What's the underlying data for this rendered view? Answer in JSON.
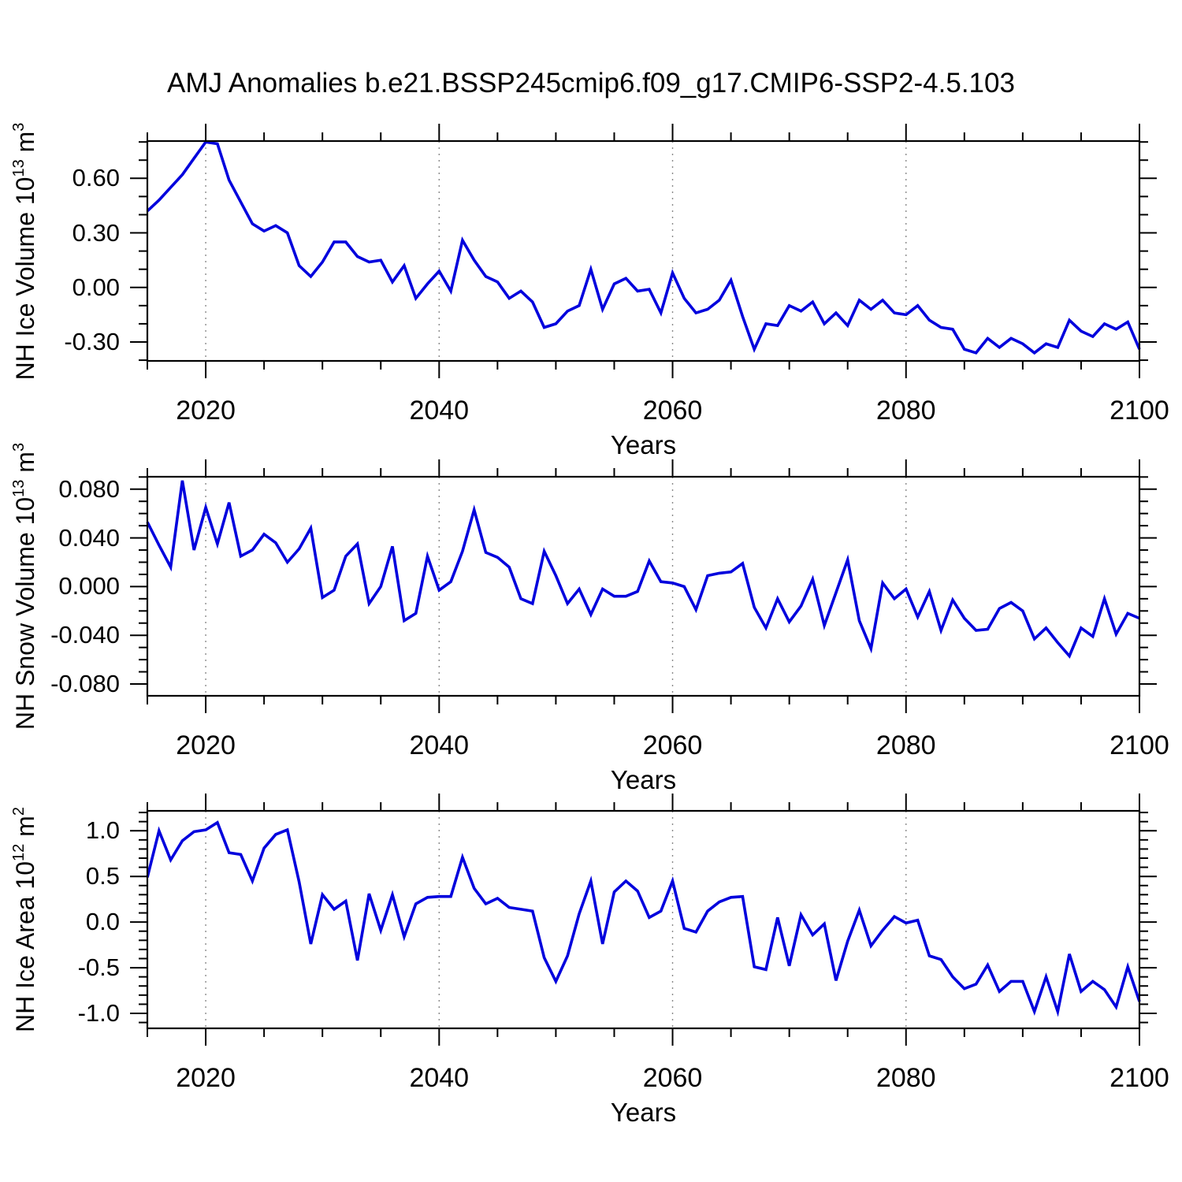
{
  "title": "AMJ Anomalies b.e21.BSSP245cmip6.f09_g17.CMIP6-SSP2-4.5.103",
  "chart_data": {
    "type": "line",
    "title": "AMJ Anomalies b.e21.BSSP245cmip6.f09_g17.CMIP6-SSP2-4.5.103",
    "xlabel": "Years",
    "xlim": [
      2015,
      2100
    ],
    "x_ticks_major": [
      2020,
      2040,
      2060,
      2080,
      2100
    ],
    "x_tick_labels": [
      "2020",
      "2040",
      "2060",
      "2080",
      "2100"
    ],
    "x_minor_step": 5,
    "grid_x_dashed": [
      2020,
      2040,
      2060,
      2080
    ],
    "grid": "vertical-dashed-only",
    "legend": "none",
    "line_color": "#0000dd",
    "frame_color": "#000000",
    "gridline_color": "#8a8a8a",
    "years": [
      2015,
      2016,
      2017,
      2018,
      2019,
      2020,
      2021,
      2022,
      2023,
      2024,
      2025,
      2026,
      2027,
      2028,
      2029,
      2030,
      2031,
      2032,
      2033,
      2034,
      2035,
      2036,
      2037,
      2038,
      2039,
      2040,
      2041,
      2042,
      2043,
      2044,
      2045,
      2046,
      2047,
      2048,
      2049,
      2050,
      2051,
      2052,
      2053,
      2054,
      2055,
      2056,
      2057,
      2058,
      2059,
      2060,
      2061,
      2062,
      2063,
      2064,
      2065,
      2066,
      2067,
      2068,
      2069,
      2070,
      2071,
      2072,
      2073,
      2074,
      2075,
      2076,
      2077,
      2078,
      2079,
      2080,
      2081,
      2082,
      2083,
      2084,
      2085,
      2086,
      2087,
      2088,
      2089,
      2090,
      2091,
      2092,
      2093,
      2094,
      2095,
      2096,
      2097,
      2098,
      2099,
      2100
    ],
    "panels": [
      {
        "name": "nh-ice-volume",
        "ylabel": "NH Ice Volume 10^13 m^3",
        "ylabel_rich": [
          {
            "t": "NH Ice Volume 10"
          },
          {
            "t": "13",
            "sup": true
          },
          {
            "t": " m"
          },
          {
            "t": "3",
            "sup": true
          }
        ],
        "ylim": [
          -0.404,
          0.805
        ],
        "y_ticks_major": [
          0.6,
          0.3,
          0.0,
          -0.3
        ],
        "y_tick_labels": [
          "0.60",
          "0.30",
          "0.00",
          "-0.30"
        ],
        "y_minor_step": 0.1,
        "values": [
          0.42,
          0.48,
          0.55,
          0.62,
          0.71,
          0.8,
          0.79,
          0.59,
          0.47,
          0.35,
          0.31,
          0.34,
          0.3,
          0.12,
          0.06,
          0.14,
          0.25,
          0.25,
          0.17,
          0.14,
          0.15,
          0.03,
          0.12,
          -0.06,
          0.02,
          0.09,
          -0.02,
          0.26,
          0.15,
          0.06,
          0.03,
          -0.06,
          -0.02,
          -0.08,
          -0.22,
          -0.2,
          -0.13,
          -0.1,
          0.1,
          -0.12,
          0.02,
          0.05,
          -0.02,
          -0.01,
          -0.14,
          0.08,
          -0.06,
          -0.14,
          -0.12,
          -0.07,
          0.04,
          -0.16,
          -0.34,
          -0.2,
          -0.21,
          -0.1,
          -0.13,
          -0.08,
          -0.2,
          -0.14,
          -0.21,
          -0.07,
          -0.12,
          -0.07,
          -0.14,
          -0.15,
          -0.1,
          -0.18,
          -0.22,
          -0.23,
          -0.34,
          -0.36,
          -0.28,
          -0.33,
          -0.28,
          -0.31,
          -0.36,
          -0.31,
          -0.33,
          -0.18,
          -0.24,
          -0.27,
          -0.2,
          -0.23,
          -0.19,
          -0.34
        ]
      },
      {
        "name": "nh-snow-volume",
        "ylabel": "NH Snow Volume 10^13 m^3",
        "ylabel_rich": [
          {
            "t": "NH Snow Volume 10"
          },
          {
            "t": "13",
            "sup": true
          },
          {
            "t": " m"
          },
          {
            "t": "3",
            "sup": true
          }
        ],
        "ylim": [
          -0.0897,
          0.0902
        ],
        "y_ticks_major": [
          0.08,
          0.04,
          0.0,
          -0.04,
          -0.08
        ],
        "y_tick_labels": [
          "0.080",
          "0.040",
          "0.000",
          "-0.040",
          "-0.080"
        ],
        "y_minor_step": 0.01,
        "values": [
          0.053,
          0.034,
          0.016,
          0.087,
          0.03,
          0.065,
          0.035,
          0.069,
          0.025,
          0.03,
          0.043,
          0.036,
          0.02,
          0.031,
          0.048,
          -0.009,
          -0.003,
          0.025,
          0.035,
          -0.014,
          0.0,
          0.033,
          -0.028,
          -0.022,
          0.025,
          -0.003,
          0.004,
          0.029,
          0.063,
          0.028,
          0.024,
          0.016,
          -0.01,
          -0.014,
          0.029,
          0.009,
          -0.014,
          -0.002,
          -0.023,
          -0.002,
          -0.008,
          -0.008,
          -0.004,
          0.021,
          0.004,
          0.003,
          0.0,
          -0.019,
          0.009,
          0.011,
          0.012,
          0.019,
          -0.017,
          -0.034,
          -0.01,
          -0.029,
          -0.016,
          0.006,
          -0.032,
          -0.005,
          0.022,
          -0.028,
          -0.051,
          0.003,
          -0.01,
          -0.002,
          -0.025,
          -0.004,
          -0.036,
          -0.011,
          -0.026,
          -0.036,
          -0.035,
          -0.018,
          -0.013,
          -0.02,
          -0.043,
          -0.034,
          -0.046,
          -0.057,
          -0.034,
          -0.041,
          -0.01,
          -0.039,
          -0.022,
          -0.026
        ]
      },
      {
        "name": "nh-ice-area",
        "ylabel": "NH Ice Area 10^12 m^2",
        "ylabel_rich": [
          {
            "t": "NH Ice Area 10"
          },
          {
            "t": "12",
            "sup": true
          },
          {
            "t": " m"
          },
          {
            "t": "2",
            "sup": true
          }
        ],
        "ylim": [
          -1.164,
          1.218
        ],
        "y_ticks_major": [
          1.0,
          0.5,
          0.0,
          -0.5,
          -1.0
        ],
        "y_tick_labels": [
          "1.0",
          "0.5",
          "0.0",
          "-0.5",
          "-1.0"
        ],
        "y_minor_step": 0.1,
        "values": [
          0.49,
          1.0,
          0.68,
          0.89,
          0.99,
          1.01,
          1.09,
          0.76,
          0.74,
          0.45,
          0.81,
          0.96,
          1.01,
          0.44,
          -0.24,
          0.3,
          0.14,
          0.23,
          -0.42,
          0.31,
          -0.09,
          0.3,
          -0.16,
          0.2,
          0.27,
          0.28,
          0.28,
          0.71,
          0.37,
          0.2,
          0.26,
          0.16,
          0.14,
          0.12,
          -0.39,
          -0.65,
          -0.37,
          0.09,
          0.45,
          -0.24,
          0.33,
          0.45,
          0.34,
          0.05,
          0.12,
          0.45,
          -0.07,
          -0.11,
          0.12,
          0.22,
          0.27,
          0.28,
          -0.49,
          -0.52,
          0.05,
          -0.48,
          0.08,
          -0.14,
          -0.02,
          -0.64,
          -0.21,
          0.13,
          -0.26,
          -0.09,
          0.06,
          -0.01,
          0.02,
          -0.37,
          -0.41,
          -0.6,
          -0.73,
          -0.68,
          -0.47,
          -0.76,
          -0.65,
          -0.65,
          -0.98,
          -0.6,
          -0.98,
          -0.35,
          -0.76,
          -0.65,
          -0.74,
          -0.93,
          -0.49,
          -0.87
        ]
      }
    ]
  }
}
